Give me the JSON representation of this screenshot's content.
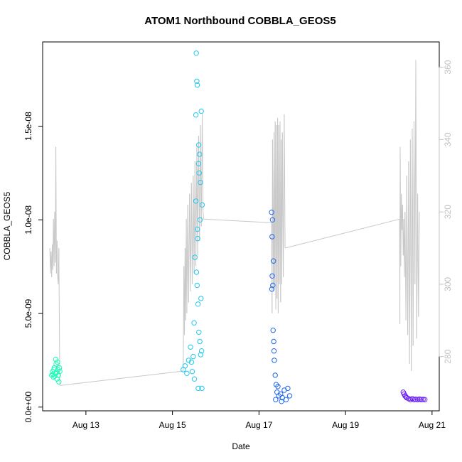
{
  "chart_data": {
    "type": "scatter",
    "title": "ATOM1 Northbound COBBLA_GEOS5",
    "xlabel": "Date",
    "ylabel": "COBBLA_GEOS5",
    "xlim": [
      "2018-08-12T00:00",
      "2018-08-21T04:00"
    ],
    "ylim": [
      -2e-10,
      1.95e-08
    ],
    "ylim_right": [
      265,
      367
    ],
    "x_ticks": [
      "2018-08-13",
      "2018-08-15",
      "2018-08-17",
      "2018-08-19",
      "2018-08-21"
    ],
    "x_tick_labels": [
      "Aug 13",
      "Aug 15",
      "Aug 17",
      "Aug 19",
      "Aug 21"
    ],
    "y_ticks": [
      0,
      5e-09,
      1e-08,
      1.5e-08
    ],
    "y_tick_labels": [
      "0.0e+00",
      "5.0e-09",
      "1.0e-08",
      "1.5e-08"
    ],
    "y_ticks_right": [
      280,
      300,
      320,
      340,
      360
    ],
    "grid": false,
    "legend": "none",
    "series": [
      {
        "color": "#1dfcb8",
        "points": [
          [
            "2018-08-12T05:00",
            1.7e-09
          ],
          [
            "2018-08-12T05:30",
            1.9e-09
          ],
          [
            "2018-08-12T06:00",
            1.6e-09
          ],
          [
            "2018-08-12T06:30",
            2.1e-09
          ],
          [
            "2018-08-12T07:00",
            1.8e-09
          ],
          [
            "2018-08-12T07:30",
            2.3e-09
          ],
          [
            "2018-08-12T08:00",
            1.5e-09
          ],
          [
            "2018-08-12T08:30",
            2e-09
          ],
          [
            "2018-08-12T09:00",
            1.35e-09
          ],
          [
            "2018-08-12T09:30",
            1.9e-09
          ],
          [
            "2018-08-12T07:15",
            2.55e-09
          ],
          [
            "2018-08-12T08:15",
            2.4e-09
          ],
          [
            "2018-08-12T05:45",
            1.75e-09
          ],
          [
            "2018-08-12T06:45",
            1.65e-09
          ],
          [
            "2018-08-12T07:45",
            1.85e-09
          ],
          [
            "2018-08-12T08:45",
            1.7e-09
          ],
          [
            "2018-08-12T09:15",
            2.1e-09
          ],
          [
            "2018-08-12T06:15",
            2e-09
          ]
        ]
      },
      {
        "color": "#22c8f0",
        "points": [
          [
            "2018-08-15T06:00",
            2e-09
          ],
          [
            "2018-08-15T07:00",
            2.2e-09
          ],
          [
            "2018-08-15T08:00",
            1.8e-09
          ],
          [
            "2018-08-15T09:00",
            2.5e-09
          ],
          [
            "2018-08-15T10:00",
            3.2e-09
          ],
          [
            "2018-08-15T11:00",
            1.9e-09
          ],
          [
            "2018-08-15T12:00",
            4.5e-09
          ],
          [
            "2018-08-15T13:00",
            1.1e-08
          ],
          [
            "2018-08-15T13:30",
            1.74e-08
          ],
          [
            "2018-08-15T13:45",
            1.72e-08
          ],
          [
            "2018-08-15T13:15",
            1.89e-08
          ],
          [
            "2018-08-15T13:00",
            1.56e-08
          ],
          [
            "2018-08-15T14:00",
            9e-09
          ],
          [
            "2018-08-15T14:30",
            1.3e-08
          ],
          [
            "2018-08-15T15:00",
            1.35e-08
          ],
          [
            "2018-08-15T15:30",
            1.2e-08
          ],
          [
            "2018-08-15T16:00",
            1.58e-08
          ],
          [
            "2018-08-15T16:30",
            1.08e-08
          ],
          [
            "2018-08-15T12:30",
            8e-09
          ],
          [
            "2018-08-15T13:20",
            7.2e-09
          ],
          [
            "2018-08-15T13:40",
            6.5e-09
          ],
          [
            "2018-08-15T14:10",
            5.5e-09
          ],
          [
            "2018-08-15T14:40",
            4e-09
          ],
          [
            "2018-08-15T15:10",
            3.5e-09
          ],
          [
            "2018-08-15T15:40",
            2.8e-09
          ],
          [
            "2018-08-15T16:10",
            3e-09
          ],
          [
            "2018-08-15T14:20",
            1e-09
          ],
          [
            "2018-08-15T16:20",
            1e-09
          ],
          [
            "2018-08-15T12:10",
            1.5e-09
          ],
          [
            "2018-08-15T10:30",
            2.4e-09
          ],
          [
            "2018-08-15T11:30",
            2.7e-09
          ],
          [
            "2018-08-15T15:20",
            1e-08
          ],
          [
            "2018-08-15T14:50",
            1.25e-08
          ],
          [
            "2018-08-15T13:50",
            9.5e-09
          ],
          [
            "2018-08-15T14:35",
            1.4e-08
          ],
          [
            "2018-08-15T15:50",
            5.8e-09
          ]
        ]
      },
      {
        "color": "#1f66ee",
        "points": [
          [
            "2018-08-17T07:00",
            1.04e-08
          ],
          [
            "2018-08-17T07:30",
            1e-08
          ],
          [
            "2018-08-17T07:15",
            9.1e-09
          ],
          [
            "2018-08-17T08:00",
            7.8e-09
          ],
          [
            "2018-08-17T07:20",
            7e-09
          ],
          [
            "2018-08-17T07:40",
            6.5e-09
          ],
          [
            "2018-08-17T07:10",
            6.3e-09
          ],
          [
            "2018-08-17T07:50",
            4.1e-09
          ],
          [
            "2018-08-17T08:10",
            3.5e-09
          ],
          [
            "2018-08-17T08:20",
            3e-09
          ],
          [
            "2018-08-17T08:30",
            2.5e-09
          ],
          [
            "2018-08-17T09:00",
            1.7e-09
          ],
          [
            "2018-08-17T09:30",
            1.2e-09
          ],
          [
            "2018-08-17T10:00",
            8e-10
          ],
          [
            "2018-08-17T11:00",
            6e-10
          ],
          [
            "2018-08-17T12:00",
            7e-10
          ],
          [
            "2018-08-17T13:00",
            5e-10
          ],
          [
            "2018-08-17T14:00",
            9e-10
          ],
          [
            "2018-08-17T15:00",
            4e-10
          ],
          [
            "2018-08-17T16:00",
            1e-09
          ],
          [
            "2018-08-17T17:00",
            6e-10
          ],
          [
            "2018-08-17T09:15",
            4e-10
          ],
          [
            "2018-08-17T10:30",
            1.1e-09
          ],
          [
            "2018-08-17T12:30",
            3e-10
          ]
        ]
      },
      {
        "color": "#6a1ef0",
        "points": [
          [
            "2018-08-20T08:00",
            8e-10
          ],
          [
            "2018-08-20T09:00",
            6e-10
          ],
          [
            "2018-08-20T10:00",
            5e-10
          ],
          [
            "2018-08-20T11:00",
            4.5e-10
          ],
          [
            "2018-08-20T12:00",
            4e-10
          ],
          [
            "2018-08-20T13:00",
            4.5e-10
          ],
          [
            "2018-08-20T14:00",
            4e-10
          ],
          [
            "2018-08-20T15:00",
            4.2e-10
          ],
          [
            "2018-08-20T16:00",
            4e-10
          ],
          [
            "2018-08-20T17:00",
            4.3e-10
          ],
          [
            "2018-08-20T18:00",
            4e-10
          ],
          [
            "2018-08-20T19:00",
            4.1e-10
          ],
          [
            "2018-08-20T08:30",
            7e-10
          ],
          [
            "2018-08-20T09:30",
            5.5e-10
          ],
          [
            "2018-08-20T20:00",
            4e-10
          ]
        ]
      }
    ],
    "line_series": {
      "color": "#c8c8c8",
      "axis": "right",
      "points": [
        [
          "2018-08-12T04:00",
          310
        ],
        [
          "2018-08-12T04:20",
          303
        ],
        [
          "2018-08-12T04:40",
          309
        ],
        [
          "2018-08-12T05:00",
          302
        ],
        [
          "2018-08-12T05:20",
          311
        ],
        [
          "2018-08-12T05:40",
          304
        ],
        [
          "2018-08-12T06:00",
          318
        ],
        [
          "2018-08-12T06:20",
          305
        ],
        [
          "2018-08-12T06:40",
          320
        ],
        [
          "2018-08-12T07:00",
          306
        ],
        [
          "2018-08-12T07:20",
          338
        ],
        [
          "2018-08-12T07:40",
          303
        ],
        [
          "2018-08-12T08:00",
          312
        ],
        [
          "2018-08-12T08:20",
          302
        ],
        [
          "2018-08-12T08:40",
          300
        ],
        [
          "2018-08-12T09:00",
          310
        ],
        [
          "2018-08-12T09:30",
          272
        ],
        [
          "2018-08-15T06:00",
          276
        ],
        [
          "2018-08-15T06:20",
          305
        ],
        [
          "2018-08-15T06:40",
          286
        ],
        [
          "2018-08-15T07:00",
          310
        ],
        [
          "2018-08-15T07:20",
          290
        ],
        [
          "2018-08-15T07:40",
          318
        ],
        [
          "2018-08-15T08:00",
          292
        ],
        [
          "2018-08-15T08:30",
          322
        ],
        [
          "2018-08-15T09:00",
          295
        ],
        [
          "2018-08-15T09:30",
          325
        ],
        [
          "2018-08-15T10:00",
          298
        ],
        [
          "2018-08-15T10:30",
          328
        ],
        [
          "2018-08-15T11:00",
          300
        ],
        [
          "2018-08-15T11:30",
          330
        ],
        [
          "2018-08-15T12:00",
          303
        ],
        [
          "2018-08-15T12:30",
          334
        ],
        [
          "2018-08-15T13:00",
          305
        ],
        [
          "2018-08-15T13:30",
          338
        ],
        [
          "2018-08-15T14:00",
          308
        ],
        [
          "2018-08-15T14:30",
          341
        ],
        [
          "2018-08-15T15:00",
          312
        ],
        [
          "2018-08-15T15:30",
          344
        ],
        [
          "2018-08-15T16:00",
          316
        ],
        [
          "2018-08-15T16:30",
          347
        ],
        [
          "2018-08-15T17:00",
          320
        ],
        [
          "2018-08-15T17:20",
          318
        ],
        [
          "2018-08-17T07:00",
          317
        ],
        [
          "2018-08-17T07:15",
          292
        ],
        [
          "2018-08-17T07:30",
          340
        ],
        [
          "2018-08-17T08:00",
          298
        ],
        [
          "2018-08-17T08:20",
          342
        ],
        [
          "2018-08-17T08:40",
          300
        ],
        [
          "2018-08-17T09:00",
          345
        ],
        [
          "2018-08-17T09:20",
          293
        ],
        [
          "2018-08-17T09:40",
          344
        ],
        [
          "2018-08-17T10:00",
          296
        ],
        [
          "2018-08-17T10:20",
          346
        ],
        [
          "2018-08-17T10:40",
          292
        ],
        [
          "2018-08-17T11:00",
          344
        ],
        [
          "2018-08-17T11:20",
          300
        ],
        [
          "2018-08-17T11:40",
          345
        ],
        [
          "2018-08-17T12:00",
          295
        ],
        [
          "2018-08-17T12:20",
          340
        ],
        [
          "2018-08-17T12:40",
          300
        ],
        [
          "2018-08-17T13:00",
          342
        ],
        [
          "2018-08-17T13:30",
          302
        ],
        [
          "2018-08-17T14:00",
          347
        ],
        [
          "2018-08-17T14:30",
          310
        ],
        [
          "2018-08-20T06:00",
          318
        ],
        [
          "2018-08-20T06:10",
          289
        ],
        [
          "2018-08-20T06:20",
          338
        ],
        [
          "2018-08-20T06:40",
          305
        ],
        [
          "2018-08-20T07:00",
          325
        ],
        [
          "2018-08-20T07:20",
          315
        ],
        [
          "2018-08-20T07:40",
          322
        ],
        [
          "2018-08-20T08:00",
          308
        ],
        [
          "2018-08-20T08:20",
          318
        ],
        [
          "2018-08-20T08:40",
          302
        ],
        [
          "2018-08-20T09:00",
          320
        ],
        [
          "2018-08-20T09:30",
          290
        ],
        [
          "2018-08-20T10:00",
          330
        ],
        [
          "2018-08-20T10:30",
          286
        ],
        [
          "2018-08-20T11:00",
          334
        ],
        [
          "2018-08-20T11:30",
          278
        ],
        [
          "2018-08-20T12:00",
          340
        ],
        [
          "2018-08-20T12:30",
          276
        ],
        [
          "2018-08-20T13:00",
          343
        ],
        [
          "2018-08-20T13:30",
          283
        ],
        [
          "2018-08-20T14:00",
          345
        ],
        [
          "2018-08-20T14:30",
          300
        ],
        [
          "2018-08-20T15:00",
          362
        ],
        [
          "2018-08-20T15:30",
          285
        ],
        [
          "2018-08-20T16:00",
          325
        ],
        [
          "2018-08-20T16:30",
          291
        ],
        [
          "2018-08-20T17:00",
          320
        ]
      ]
    }
  }
}
